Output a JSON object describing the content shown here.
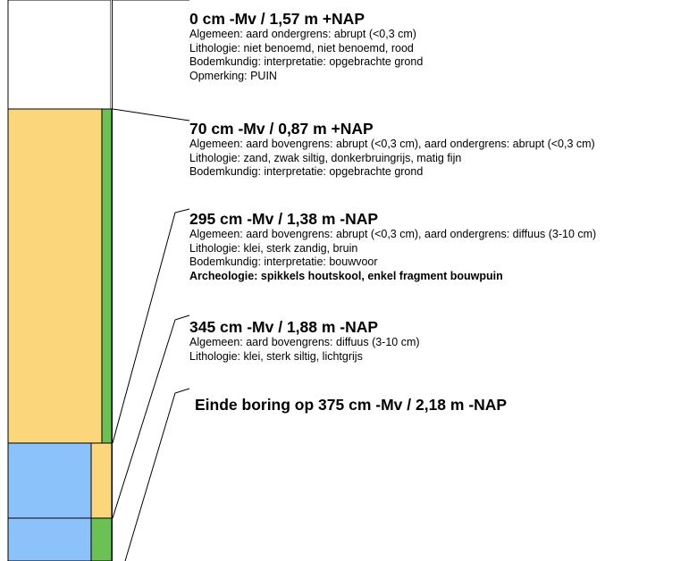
{
  "colors": {
    "sand": "#fbd67a",
    "clay": "#8cc2fa",
    "green": "#6cc155",
    "white": "#ffffff",
    "outline": "#000000"
  },
  "layers": [
    {
      "heading": "0 cm -Mv / 1,57 m +NAP",
      "lines": [
        {
          "text": "Algemeen: aard ondergrens: abrupt (<0,3 cm)",
          "bold": false
        },
        {
          "text": "Lithologie: niet benoemd, niet benoemd, rood",
          "bold": false
        },
        {
          "text": "Bodemkundig: interpretatie: opgebrachte grond",
          "bold": false
        },
        {
          "text": "Opmerking: PUIN",
          "bold": false
        }
      ]
    },
    {
      "heading": "70 cm -Mv / 0,87 m +NAP",
      "lines": [
        {
          "text": "Algemeen: aard bovengrens: abrupt (<0,3 cm), aard ondergrens: abrupt (<0,3 cm)",
          "bold": false
        },
        {
          "text": "Lithologie: zand, zwak siltig, donkerbruingrijs, matig fijn",
          "bold": false
        },
        {
          "text": "Bodemkundig: interpretatie: opgebrachte grond",
          "bold": false
        }
      ]
    },
    {
      "heading": "295 cm -Mv / 1,38 m -NAP",
      "lines": [
        {
          "text": "Algemeen: aard bovengrens: abrupt (<0,3 cm), aard ondergrens: diffuus (3-10 cm)",
          "bold": false
        },
        {
          "text": "Lithologie: klei, sterk zandig, bruin",
          "bold": false
        },
        {
          "text": "Bodemkundig: interpretatie: bouwvoor",
          "bold": false
        },
        {
          "text": "Archeologie: spikkels houtskool, enkel fragment bouwpuin",
          "bold": true
        }
      ]
    },
    {
      "heading": "345 cm -Mv / 1,88 m -NAP",
      "lines": [
        {
          "text": "Algemeen: aard bovengrens: diffuus (3-10 cm)",
          "bold": false
        },
        {
          "text": "Lithologie: klei, sterk siltig, lichtgrijs",
          "bold": false
        }
      ]
    }
  ],
  "end_label": "Einde boring op 375 cm -Mv / 2,18 m -NAP"
}
